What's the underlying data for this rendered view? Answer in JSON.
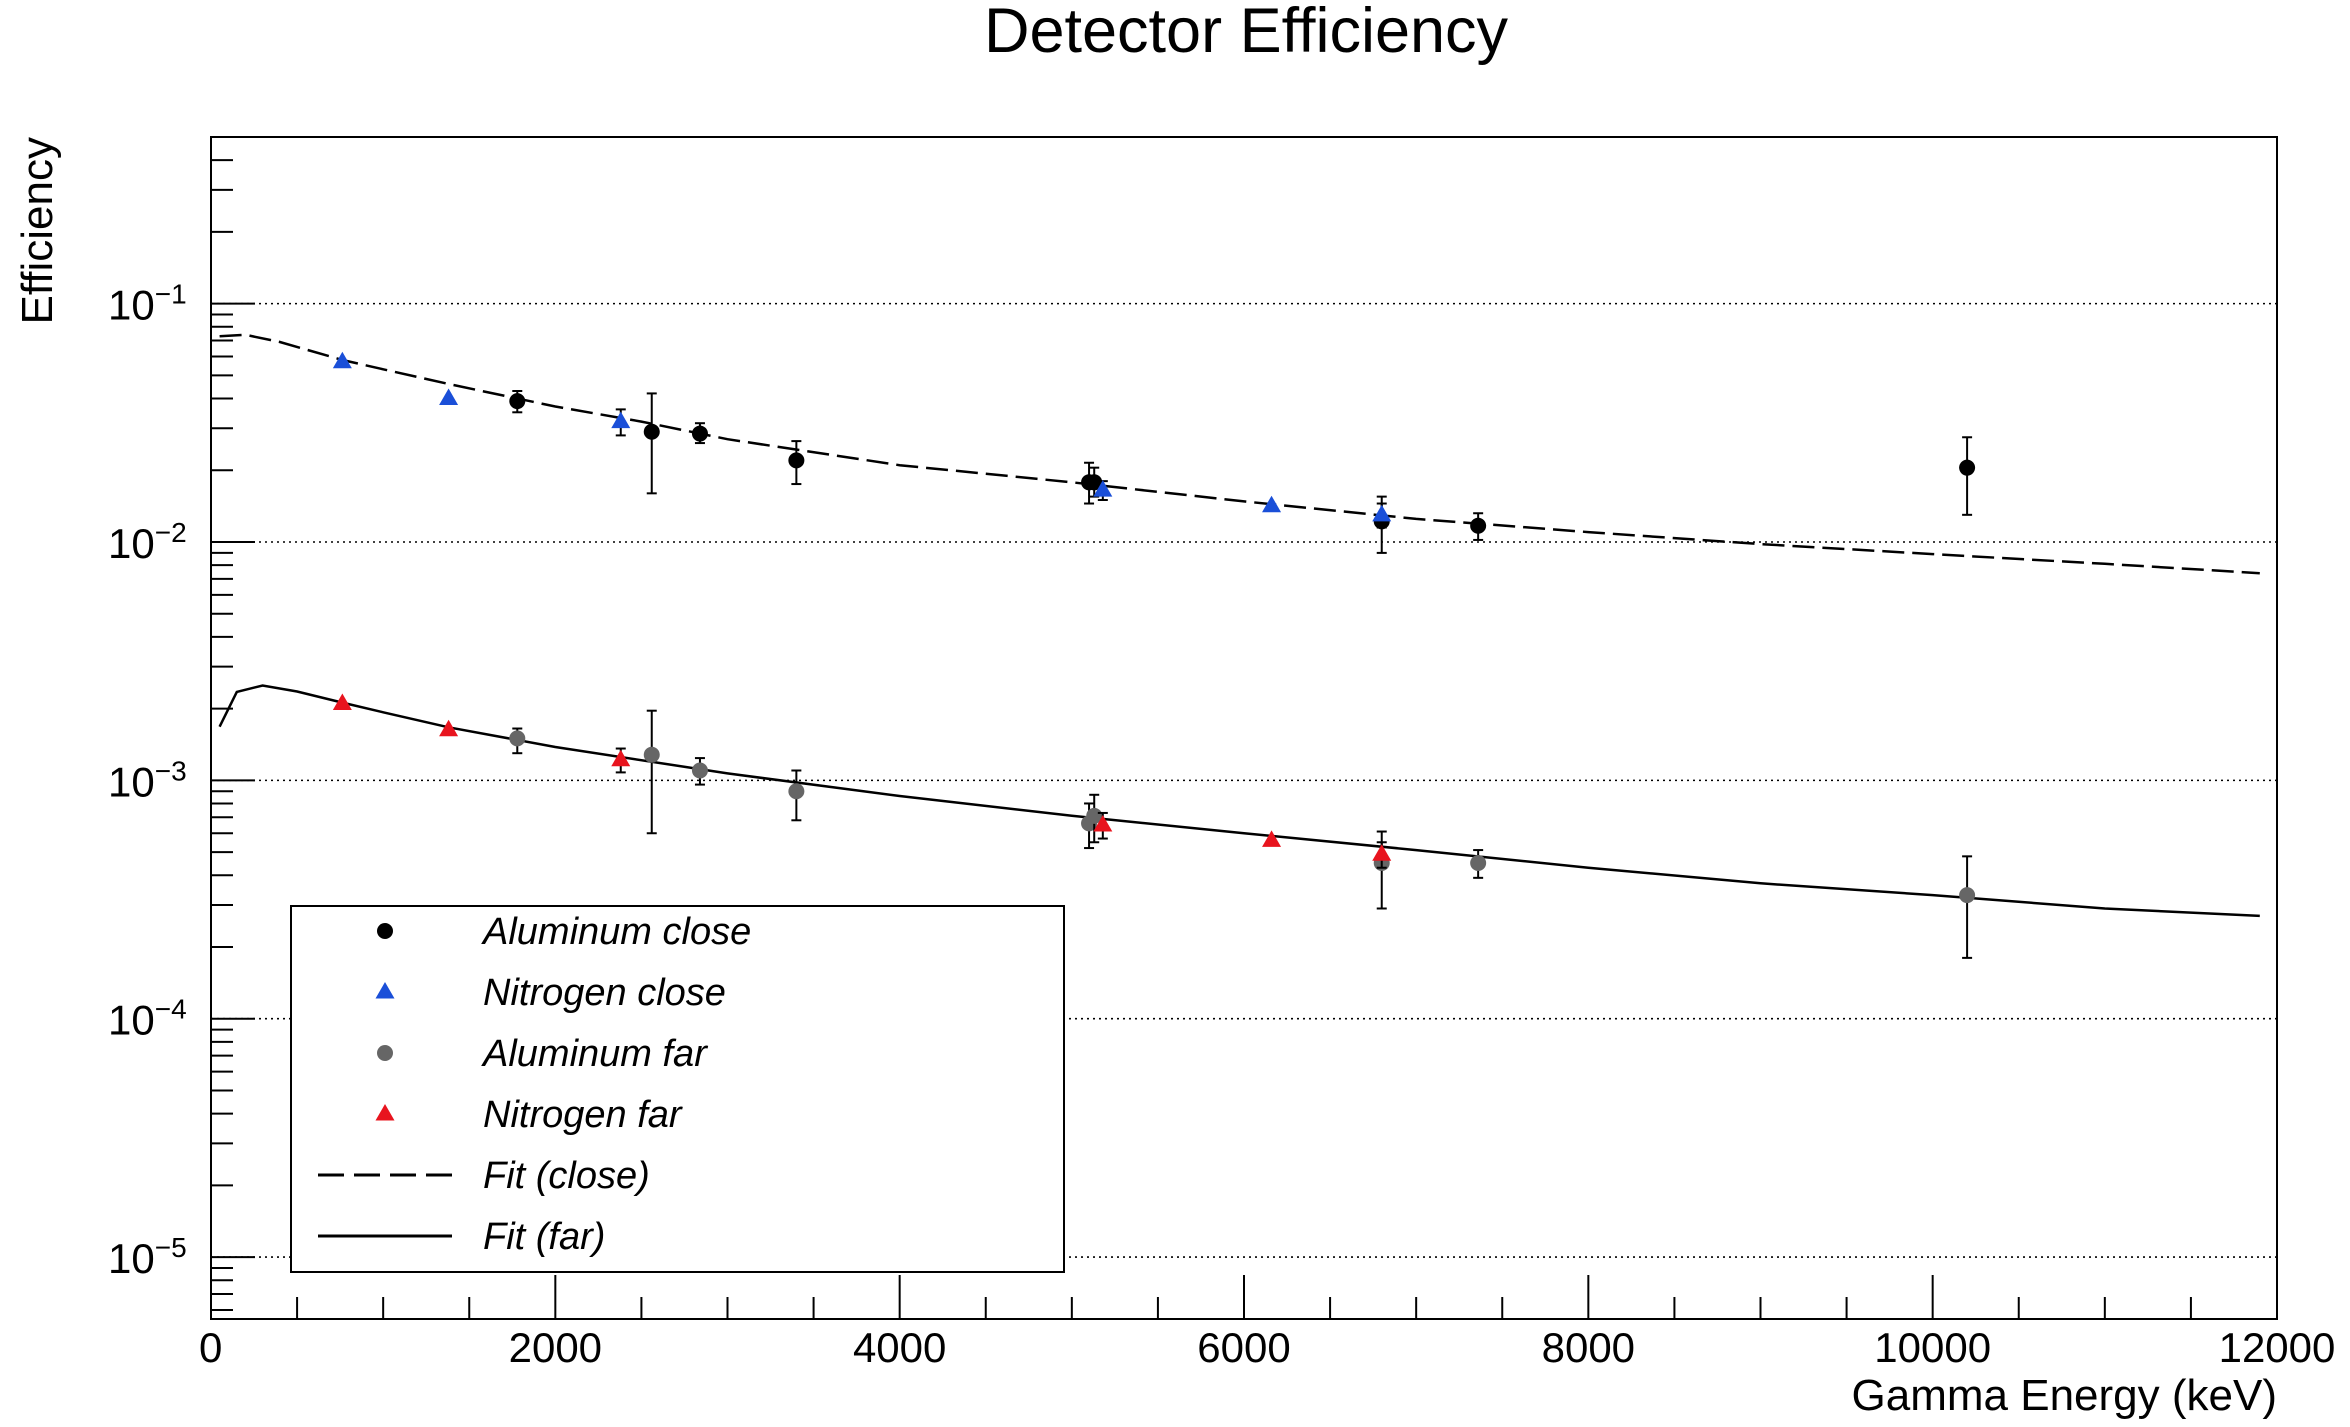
{
  "chart_data": {
    "type": "scatter",
    "title": "Detector Efficiency",
    "xlabel": "Gamma Energy (keV)",
    "ylabel": "Efficiency",
    "x_range": [
      0,
      12000
    ],
    "y_range": [
      5.5e-06,
      0.5
    ],
    "y_scale": "log",
    "grid": "horizontal dotted at decades",
    "legend_position": "bottom-left",
    "x_ticks": [
      {
        "value": 0,
        "label": "0"
      },
      {
        "value": 2000,
        "label": "2000"
      },
      {
        "value": 4000,
        "label": "4000"
      },
      {
        "value": 6000,
        "label": "6000"
      },
      {
        "value": 8000,
        "label": "8000"
      },
      {
        "value": 10000,
        "label": "10000"
      },
      {
        "value": 12000,
        "label": "12000"
      }
    ],
    "y_ticks": [
      {
        "value": 0.1,
        "base": "10",
        "exp": "−1"
      },
      {
        "value": 0.01,
        "base": "10",
        "exp": "−2"
      },
      {
        "value": 0.001,
        "base": "10",
        "exp": "−3"
      },
      {
        "value": 0.0001,
        "base": "10",
        "exp": "−4"
      },
      {
        "value": 1e-05,
        "base": "10",
        "exp": "−5"
      }
    ],
    "series": [
      {
        "name": "Aluminum close",
        "marker": "circle",
        "color": "#000000",
        "points": [
          {
            "x": 1779,
            "y": 0.039,
            "ylo": 0.035,
            "yhi": 0.043
          },
          {
            "x": 2560,
            "y": 0.029,
            "ylo": 0.016,
            "yhi": 0.042
          },
          {
            "x": 2840,
            "y": 0.0285,
            "ylo": 0.026,
            "yhi": 0.0315
          },
          {
            "x": 3400,
            "y": 0.022,
            "ylo": 0.0175,
            "yhi": 0.0265
          },
          {
            "x": 5100,
            "y": 0.0178,
            "ylo": 0.0145,
            "yhi": 0.0215
          },
          {
            "x": 5130,
            "y": 0.0178,
            "ylo": 0.0155,
            "yhi": 0.0205
          },
          {
            "x": 6800,
            "y": 0.0122,
            "ylo": 0.009,
            "yhi": 0.0155
          },
          {
            "x": 7360,
            "y": 0.0117,
            "ylo": 0.0102,
            "yhi": 0.0132
          },
          {
            "x": 10200,
            "y": 0.0205,
            "ylo": 0.013,
            "yhi": 0.0275
          }
        ]
      },
      {
        "name": "Nitrogen close",
        "marker": "triangle",
        "color": "#1a4fd8",
        "points": [
          {
            "x": 763,
            "y": 0.057
          },
          {
            "x": 1380,
            "y": 0.04
          },
          {
            "x": 2380,
            "y": 0.032,
            "ylo": 0.028,
            "yhi": 0.036
          },
          {
            "x": 5180,
            "y": 0.0165,
            "ylo": 0.015,
            "yhi": 0.018
          },
          {
            "x": 6160,
            "y": 0.0142
          },
          {
            "x": 6800,
            "y": 0.013,
            "ylo": 0.0115,
            "yhi": 0.0145
          }
        ]
      },
      {
        "name": "Aluminum far",
        "marker": "circle",
        "color": "#666666",
        "points": [
          {
            "x": 1779,
            "y": 0.0015,
            "ylo": 0.0013,
            "yhi": 0.00165
          },
          {
            "x": 2560,
            "y": 0.00128,
            "ylo": 0.0006,
            "yhi": 0.00196
          },
          {
            "x": 2840,
            "y": 0.0011,
            "ylo": 0.00096,
            "yhi": 0.00124
          },
          {
            "x": 3400,
            "y": 0.0009,
            "ylo": 0.00068,
            "yhi": 0.0011
          },
          {
            "x": 5100,
            "y": 0.00066,
            "ylo": 0.00052,
            "yhi": 0.0008
          },
          {
            "x": 5130,
            "y": 0.00071,
            "ylo": 0.00055,
            "yhi": 0.00087
          },
          {
            "x": 6800,
            "y": 0.00045,
            "ylo": 0.00029,
            "yhi": 0.00061
          },
          {
            "x": 7360,
            "y": 0.00045,
            "ylo": 0.00039,
            "yhi": 0.00051
          },
          {
            "x": 10200,
            "y": 0.00033,
            "ylo": 0.00018,
            "yhi": 0.00048
          }
        ]
      },
      {
        "name": "Nitrogen far",
        "marker": "triangle",
        "color": "#e8141e",
        "points": [
          {
            "x": 763,
            "y": 0.0021
          },
          {
            "x": 1380,
            "y": 0.00163
          },
          {
            "x": 2380,
            "y": 0.00122,
            "ylo": 0.00108,
            "yhi": 0.00136
          },
          {
            "x": 5180,
            "y": 0.00065,
            "ylo": 0.00057,
            "yhi": 0.00073
          },
          {
            "x": 6160,
            "y": 0.00056
          },
          {
            "x": 6800,
            "y": 0.00049,
            "ylo": 0.00043,
            "yhi": 0.00055
          }
        ]
      }
    ],
    "fits": [
      {
        "name": "Fit (close)",
        "style": "dashed",
        "points": [
          [
            50,
            0.073
          ],
          [
            200,
            0.074
          ],
          [
            400,
            0.069
          ],
          [
            763,
            0.058
          ],
          [
            1000,
            0.053
          ],
          [
            1380,
            0.046
          ],
          [
            2000,
            0.037
          ],
          [
            2500,
            0.032
          ],
          [
            3000,
            0.027
          ],
          [
            4000,
            0.021
          ],
          [
            5000,
            0.0178
          ],
          [
            6000,
            0.0148
          ],
          [
            7000,
            0.0125
          ],
          [
            8000,
            0.011
          ],
          [
            9000,
            0.0098
          ],
          [
            10000,
            0.0089
          ],
          [
            11000,
            0.0081
          ],
          [
            11900,
            0.0074
          ]
        ]
      },
      {
        "name": "Fit (far)",
        "style": "solid",
        "points": [
          [
            50,
            0.00168
          ],
          [
            150,
            0.00235
          ],
          [
            300,
            0.0025
          ],
          [
            500,
            0.00236
          ],
          [
            763,
            0.00212
          ],
          [
            1000,
            0.00193
          ],
          [
            1380,
            0.00167
          ],
          [
            2000,
            0.00138
          ],
          [
            3000,
            0.00107
          ],
          [
            4000,
            0.00086
          ],
          [
            5000,
            0.00071
          ],
          [
            6000,
            0.0006
          ],
          [
            7000,
            0.00051
          ],
          [
            8000,
            0.00043
          ],
          [
            9000,
            0.00037
          ],
          [
            10000,
            0.00033
          ],
          [
            11000,
            0.00029
          ],
          [
            11900,
            0.00027
          ]
        ]
      }
    ]
  }
}
